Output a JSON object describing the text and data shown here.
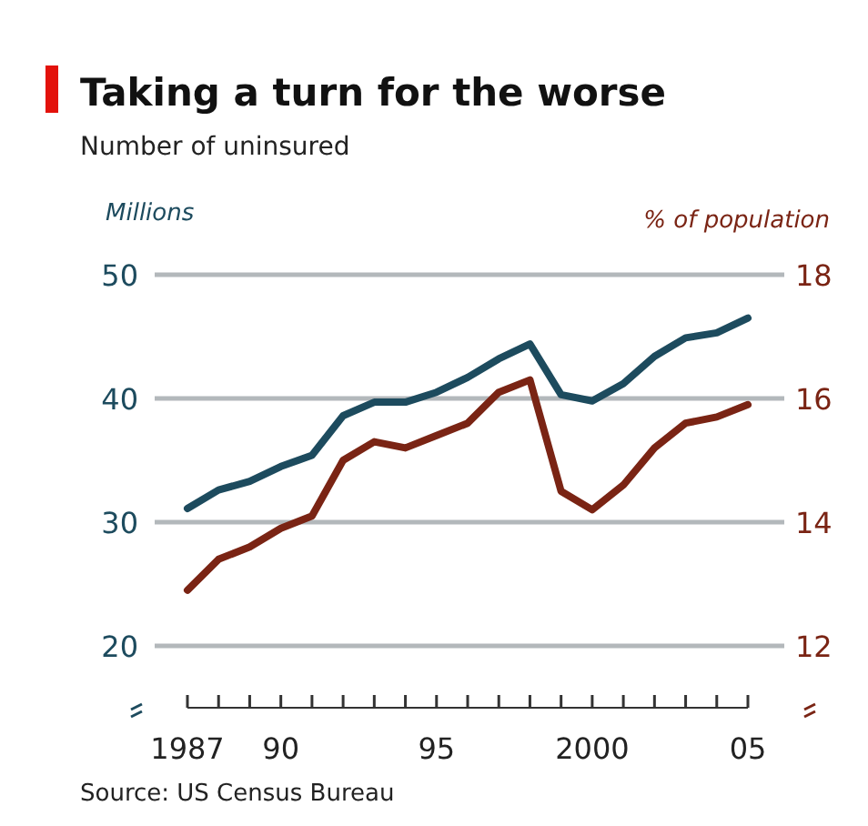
{
  "chart_data": {
    "type": "line",
    "title": "Taking a turn for the worse",
    "subtitle": "Number of uninsured",
    "ylabel": "Millions",
    "y2label": "% of population",
    "annotations": [
      "Source: US Census Bureau"
    ],
    "x": [
      1987,
      1988,
      1989,
      1990,
      1991,
      1992,
      1993,
      1994,
      1995,
      1996,
      1997,
      1998,
      1999,
      2000,
      2001,
      2002,
      2003,
      2004,
      2005
    ],
    "xlim": [
      1987,
      2005
    ],
    "xticks": [
      {
        "value": 1987,
        "label": "1987"
      },
      {
        "value": 1988,
        "label": null
      },
      {
        "value": 1989,
        "label": null
      },
      {
        "value": 1990,
        "label": "90"
      },
      {
        "value": 1991,
        "label": null
      },
      {
        "value": 1992,
        "label": null
      },
      {
        "value": 1993,
        "label": null
      },
      {
        "value": 1994,
        "label": null
      },
      {
        "value": 1995,
        "label": "95"
      },
      {
        "value": 1996,
        "label": null
      },
      {
        "value": 1997,
        "label": null
      },
      {
        "value": 1998,
        "label": null
      },
      {
        "value": 1999,
        "label": null
      },
      {
        "value": 2000,
        "label": "2000"
      },
      {
        "value": 2001,
        "label": null
      },
      {
        "value": 2002,
        "label": null
      },
      {
        "value": 2003,
        "label": null
      },
      {
        "value": 2004,
        "label": null
      },
      {
        "value": 2005,
        "label": "05"
      }
    ],
    "ylim": [
      15,
      50
    ],
    "yticks": [
      20,
      30,
      40,
      50
    ],
    "y2lim": [
      11,
      18
    ],
    "y2ticks": [
      12,
      14,
      16,
      18
    ],
    "grid": "y",
    "series": [
      {
        "color": "#1d4b5e",
        "values": [
          31.1,
          32.6,
          33.3,
          34.5,
          35.4,
          38.6,
          39.7,
          39.7,
          40.5,
          41.7,
          43.2,
          44.4,
          40.3,
          39.8,
          41.2,
          43.4,
          44.9,
          45.3,
          46.5
        ]
      },
      {
        "color": "#7a2414",
        "axis": "y2",
        "values": [
          12.9,
          13.4,
          13.6,
          13.9,
          14.1,
          15.0,
          15.3,
          15.2,
          15.4,
          15.6,
          16.1,
          16.3,
          14.5,
          14.2,
          14.6,
          15.2,
          15.6,
          15.7,
          15.9
        ]
      }
    ]
  }
}
